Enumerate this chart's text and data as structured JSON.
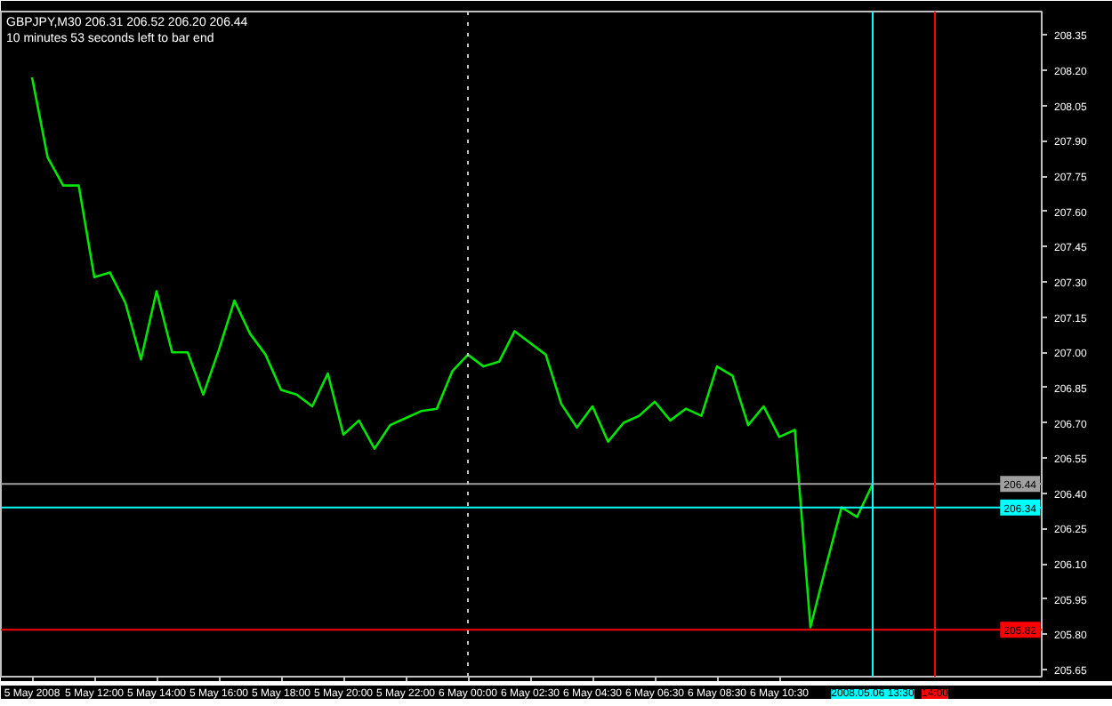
{
  "chart_data": {
    "type": "line",
    "title": "GBPJPY,M30  206.31 206.52 206.20 206.44",
    "subtitle": "10 minutes 53 seconds left to bar end",
    "categories": [
      "5 May 2008",
      null,
      null,
      null,
      "5 May 12:00",
      null,
      null,
      null,
      "5 May 14:00",
      null,
      null,
      null,
      "5 May 16:00",
      null,
      null,
      null,
      "5 May 18:00",
      null,
      null,
      null,
      "5 May 20:00",
      null,
      null,
      null,
      "5 May 22:00",
      null,
      null,
      null,
      "6 May 00:00",
      null,
      null,
      null,
      "6 May 02:30",
      null,
      null,
      null,
      "6 May 04:30",
      null,
      null,
      null,
      "6 May 06:30",
      null,
      null,
      null,
      "6 May 08:30",
      null,
      null,
      null,
      "6 May 10:30",
      null,
      null,
      null,
      null,
      null,
      "2008.05.06 13:30",
      null,
      null,
      null,
      "14:00"
    ],
    "series": [
      {
        "color": "#00e600",
        "values": [
          208.17,
          207.83,
          207.71,
          207.71,
          207.32,
          207.34,
          207.21,
          206.97,
          207.26,
          207.0,
          207.0,
          206.82,
          207.01,
          207.22,
          207.08,
          206.99,
          206.84,
          206.82,
          206.77,
          206.91,
          206.65,
          206.71,
          206.59,
          206.69,
          206.72,
          206.75,
          206.76,
          206.92,
          206.99,
          206.94,
          206.96,
          207.09,
          207.04,
          206.99,
          206.78,
          206.68,
          206.77,
          206.62,
          206.7,
          206.73,
          206.79,
          206.71,
          206.76,
          206.73,
          206.94,
          206.9,
          206.69,
          206.77,
          206.64,
          206.67,
          205.83,
          206.09,
          206.34,
          206.3,
          206.44,
          null,
          null,
          null,
          null
        ]
      }
    ],
    "ylim": [
      205.62,
      208.45
    ],
    "yticks": [
      205.65,
      {
        "value": 205.8,
        "label": "205.80"
      },
      205.95,
      {
        "value": 206.1,
        "label": "206.10"
      },
      206.25,
      {
        "value": 206.4,
        "label": "206.40"
      },
      206.55,
      {
        "value": 206.7,
        "label": "206.70"
      },
      206.85,
      {
        "value": 207.0,
        "label": "207.00"
      },
      207.15,
      {
        "value": 207.3,
        "label": "207.30"
      },
      207.45,
      {
        "value": 207.6,
        "label": "207.60"
      },
      207.75,
      {
        "value": 207.9,
        "label": "207.90"
      },
      208.05,
      {
        "value": 208.2,
        "label": "208.20"
      },
      208.35
    ],
    "ref_lines": [
      {
        "axis": "y",
        "value": 206.44,
        "label": "206.44",
        "color": "#a0a0a0"
      },
      {
        "axis": "y",
        "value": 206.34,
        "label": "206.34",
        "color": "#00ffff"
      },
      {
        "axis": "y",
        "value": 205.82,
        "label": "205.82",
        "color": "#ff0000"
      },
      {
        "axis": "x",
        "value": "6 May 00:00",
        "color": "#c0c0c0",
        "line_style": "dotted"
      },
      {
        "axis": "x",
        "value": "2008.05.06 13:30",
        "color": "#00ffff"
      },
      {
        "axis": "x",
        "value": "14:00",
        "color": "#ff0000"
      }
    ],
    "grid": false,
    "marker": "none",
    "line_style": "solid"
  }
}
